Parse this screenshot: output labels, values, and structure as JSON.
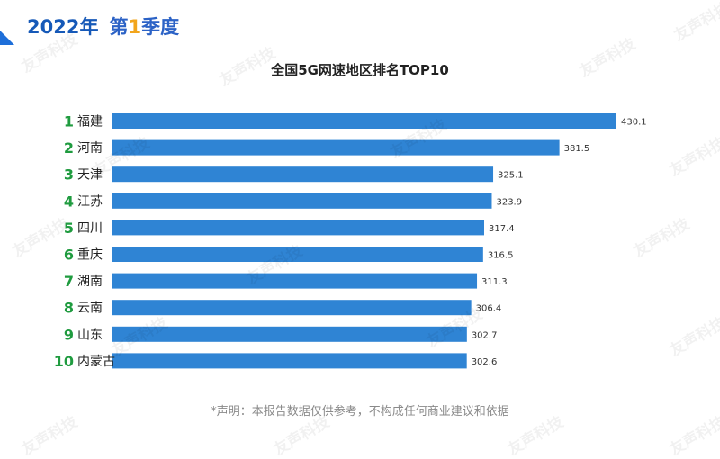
{
  "header": {
    "year_text": "2022年",
    "season_prefix": "第",
    "season_number": "1",
    "season_suffix": "季度"
  },
  "watermark_text": "友声科技",
  "footnote": "*声明：本报告数据仅供参考，不构成任何商业建议和依据",
  "colors": {
    "bar": "#2f84d4",
    "rank": "#1f9b3f",
    "label": "#222222",
    "value": "#333333",
    "accent": "#1e6fd9"
  },
  "chart_data": {
    "type": "bar",
    "orientation": "horizontal",
    "title": "全国5G网速地区排名TOP10",
    "ranks": [
      "1",
      "2",
      "3",
      "4",
      "5",
      "6",
      "7",
      "8",
      "9",
      "10"
    ],
    "categories": [
      "福建",
      "河南",
      "天津",
      "江苏",
      "四川",
      "重庆",
      "湖南",
      "云南",
      "山东",
      "内蒙古"
    ],
    "values": [
      430.1,
      381.5,
      325.1,
      323.9,
      317.4,
      316.5,
      311.3,
      306.4,
      302.7,
      302.6
    ],
    "xlim": [
      0,
      430.1
    ],
    "grid": false,
    "legend": "none"
  }
}
